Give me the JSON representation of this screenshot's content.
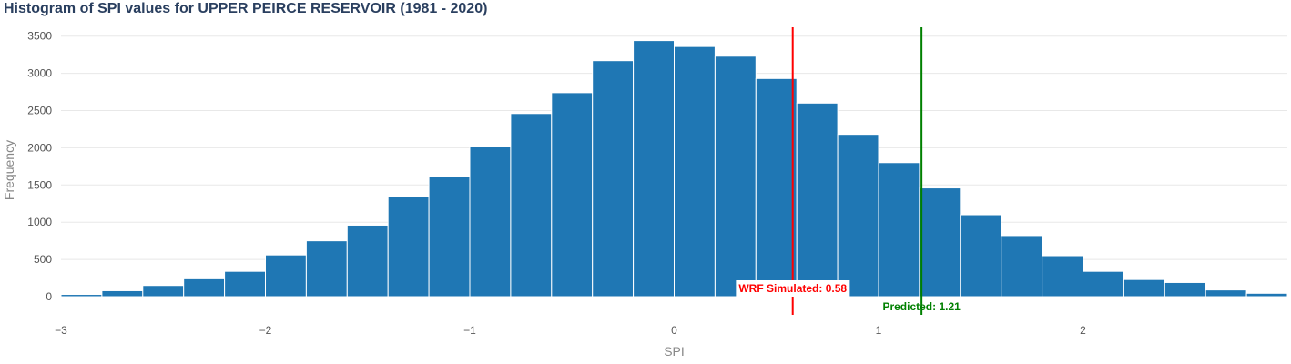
{
  "title": "Histogram of SPI values for UPPER PEIRCE RESERVOIR (1981 - 2020)",
  "chart_data": {
    "type": "bar",
    "title": "Histogram of SPI values for UPPER PEIRCE RESERVOIR (1981 - 2020)",
    "xlabel": "SPI",
    "ylabel": "Frequency",
    "xlim": [
      -3,
      3
    ],
    "ylim": [
      0,
      3600
    ],
    "grid": true,
    "bin_width": 0.2,
    "bin_starts": [
      -3.0,
      -2.8,
      -2.6,
      -2.4,
      -2.2,
      -2.0,
      -1.8,
      -1.6,
      -1.4,
      -1.2,
      -1.0,
      -0.8,
      -0.6,
      -0.4,
      -0.2,
      0.0,
      0.2,
      0.4,
      0.6,
      0.8,
      1.0,
      1.2,
      1.4,
      1.6,
      1.8,
      2.0,
      2.2,
      2.4,
      2.6,
      2.8
    ],
    "values": [
      30,
      80,
      150,
      240,
      340,
      560,
      750,
      960,
      1340,
      1610,
      2020,
      2460,
      2740,
      3170,
      3440,
      3360,
      3230,
      2930,
      2600,
      2180,
      1800,
      1460,
      1100,
      820,
      550,
      340,
      230,
      190,
      90,
      45
    ],
    "x_ticks": [
      -3,
      -2,
      -1,
      0,
      1,
      2
    ],
    "x_tick_labels": [
      "−3",
      "−2",
      "−1",
      "0",
      "1",
      "2"
    ],
    "y_ticks": [
      0,
      500,
      1000,
      1500,
      2000,
      2500,
      3000,
      3500
    ],
    "y_tick_labels": [
      "0",
      "500",
      "1000",
      "1500",
      "2000",
      "2500",
      "3000",
      "3500"
    ],
    "bar_color": "#1f77b4",
    "annotations": [
      {
        "name": "wrf-simulated",
        "label": "WRF Simulated: 0.58",
        "x": 0.58,
        "color": "#ff0000"
      },
      {
        "name": "predicted",
        "label": "Predicted: 1.21",
        "x": 1.21,
        "color": "#008000"
      }
    ]
  }
}
